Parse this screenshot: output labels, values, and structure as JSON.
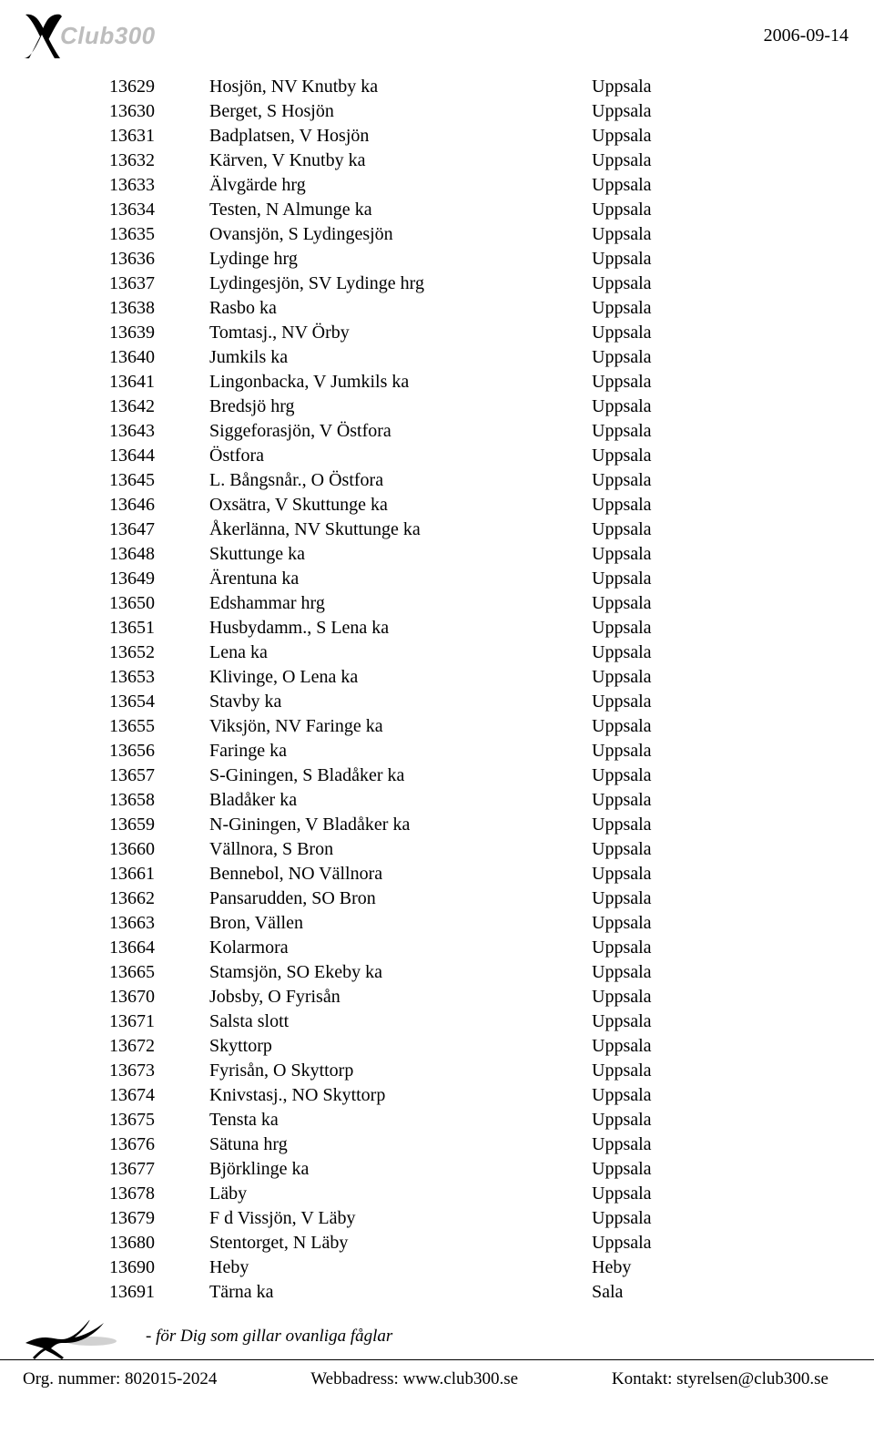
{
  "header": {
    "logo_club": "Club",
    "logo_300": "300",
    "date": "2006-09-14"
  },
  "rows": [
    {
      "id": "13629",
      "name": "Hosjön, NV Knutby ka",
      "place": "Uppsala"
    },
    {
      "id": "13630",
      "name": "Berget, S Hosjön",
      "place": "Uppsala"
    },
    {
      "id": "13631",
      "name": "Badplatsen, V Hosjön",
      "place": "Uppsala"
    },
    {
      "id": "13632",
      "name": "Kärven, V Knutby ka",
      "place": "Uppsala"
    },
    {
      "id": "13633",
      "name": "Älvgärde hrg",
      "place": "Uppsala"
    },
    {
      "id": "13634",
      "name": "Testen, N Almunge ka",
      "place": "Uppsala"
    },
    {
      "id": "13635",
      "name": "Ovansjön, S Lydingesjön",
      "place": "Uppsala"
    },
    {
      "id": "13636",
      "name": "Lydinge hrg",
      "place": "Uppsala"
    },
    {
      "id": "13637",
      "name": "Lydingesjön, SV Lydinge hrg",
      "place": "Uppsala"
    },
    {
      "id": "13638",
      "name": "Rasbo ka",
      "place": "Uppsala"
    },
    {
      "id": "13639",
      "name": "Tomtasj., NV Örby",
      "place": "Uppsala"
    },
    {
      "id": "13640",
      "name": "Jumkils ka",
      "place": "Uppsala"
    },
    {
      "id": "13641",
      "name": "Lingonbacka, V Jumkils ka",
      "place": "Uppsala"
    },
    {
      "id": "13642",
      "name": "Bredsjö hrg",
      "place": "Uppsala"
    },
    {
      "id": "13643",
      "name": "Siggeforasjön, V Östfora",
      "place": "Uppsala"
    },
    {
      "id": "13644",
      "name": "Östfora",
      "place": "Uppsala"
    },
    {
      "id": "13645",
      "name": "L. Bångsnår., O Östfora",
      "place": "Uppsala"
    },
    {
      "id": "13646",
      "name": "Oxsätra, V Skuttunge ka",
      "place": "Uppsala"
    },
    {
      "id": "13647",
      "name": "Åkerlänna, NV Skuttunge ka",
      "place": "Uppsala"
    },
    {
      "id": "13648",
      "name": "Skuttunge ka",
      "place": "Uppsala"
    },
    {
      "id": "13649",
      "name": "Ärentuna ka",
      "place": "Uppsala"
    },
    {
      "id": "13650",
      "name": "Edshammar hrg",
      "place": "Uppsala"
    },
    {
      "id": "13651",
      "name": "Husbydamm., S Lena ka",
      "place": "Uppsala"
    },
    {
      "id": "13652",
      "name": "Lena ka",
      "place": "Uppsala"
    },
    {
      "id": "13653",
      "name": "Klivinge, O Lena ka",
      "place": "Uppsala"
    },
    {
      "id": "13654",
      "name": "Stavby ka",
      "place": "Uppsala"
    },
    {
      "id": "13655",
      "name": "Viksjön, NV Faringe ka",
      "place": "Uppsala"
    },
    {
      "id": "13656",
      "name": "Faringe ka",
      "place": "Uppsala"
    },
    {
      "id": "13657",
      "name": "S-Giningen, S Bladåker ka",
      "place": "Uppsala"
    },
    {
      "id": "13658",
      "name": "Bladåker ka",
      "place": "Uppsala"
    },
    {
      "id": "13659",
      "name": "N-Giningen, V Bladåker ka",
      "place": "Uppsala"
    },
    {
      "id": "13660",
      "name": "Vällnora, S Bron",
      "place": "Uppsala"
    },
    {
      "id": "13661",
      "name": "Bennebol, NO Vällnora",
      "place": "Uppsala"
    },
    {
      "id": "13662",
      "name": "Pansarudden, SO Bron",
      "place": "Uppsala"
    },
    {
      "id": "13663",
      "name": "Bron, Vällen",
      "place": "Uppsala"
    },
    {
      "id": "13664",
      "name": "Kolarmora",
      "place": "Uppsala"
    },
    {
      "id": "13665",
      "name": "Stamsjön, SO Ekeby ka",
      "place": "Uppsala"
    },
    {
      "id": "13670",
      "name": "Jobsby, O Fyrisån",
      "place": "Uppsala"
    },
    {
      "id": "13671",
      "name": "Salsta slott",
      "place": "Uppsala"
    },
    {
      "id": "13672",
      "name": "Skyttorp",
      "place": "Uppsala"
    },
    {
      "id": "13673",
      "name": "Fyrisån, O Skyttorp",
      "place": "Uppsala"
    },
    {
      "id": "13674",
      "name": "Knivstasj., NO Skyttorp",
      "place": "Uppsala"
    },
    {
      "id": "13675",
      "name": "Tensta ka",
      "place": "Uppsala"
    },
    {
      "id": "13676",
      "name": "Sätuna hrg",
      "place": "Uppsala"
    },
    {
      "id": "13677",
      "name": "Björklinge ka",
      "place": "Uppsala"
    },
    {
      "id": "13678",
      "name": "Läby",
      "place": "Uppsala"
    },
    {
      "id": "13679",
      "name": "F d Vissjön, V Läby",
      "place": "Uppsala"
    },
    {
      "id": "13680",
      "name": "Stentorget, N Läby",
      "place": "Uppsala"
    },
    {
      "id": "13690",
      "name": "Heby",
      "place": "Heby"
    },
    {
      "id": "13691",
      "name": "Tärna ka",
      "place": "Sala"
    }
  ],
  "footer": {
    "tagline": "- för Dig som gillar ovanliga fåglar",
    "org": "Org. nummer: 802015-2024",
    "web": "Webbadress: www.club300.se",
    "contact": "Kontakt: styrelsen@club300.se"
  }
}
